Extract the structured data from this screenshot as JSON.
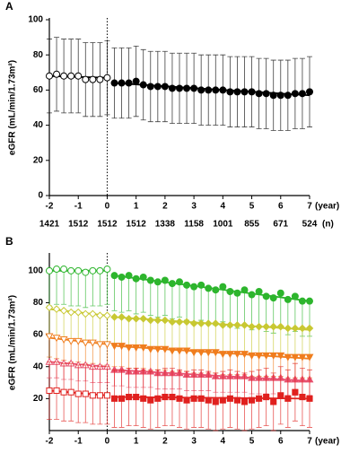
{
  "chart_data": [
    {
      "type": "scatter",
      "title": "A",
      "y_label": "eGFR (mL/min/1.73m²)",
      "x_unit": "(year)",
      "n_unit": "(n)",
      "xlim": [
        -2,
        7
      ],
      "xticks": [
        -2,
        -1,
        0,
        1,
        2,
        3,
        4,
        5,
        6,
        7
      ],
      "ylim": [
        0,
        100
      ],
      "yticks": [
        0,
        20,
        40,
        60,
        80,
        100
      ],
      "n_values": [
        1421,
        1512,
        1512,
        1512,
        1338,
        1158,
        1001,
        855,
        671,
        524
      ],
      "divider_x": 0,
      "series": [
        {
          "color": "#000000",
          "marker": "circle",
          "filled": false,
          "error_direction": "both",
          "error": 21,
          "trend": [
            68,
            67
          ],
          "x": [
            -2,
            -1.75,
            -1.5,
            -1.25,
            -1,
            -0.75,
            -0.5,
            -0.25,
            0
          ],
          "values": [
            68,
            69,
            68,
            68,
            68,
            66,
            66,
            66,
            67
          ]
        },
        {
          "color": "#000000",
          "marker": "circle",
          "filled": true,
          "error_direction": "both",
          "error": 20,
          "trend": [
            64,
            57
          ],
          "x": [
            0.25,
            0.5,
            0.75,
            1,
            1.25,
            1.5,
            1.75,
            2,
            2.25,
            2.5,
            2.75,
            3,
            3.25,
            3.5,
            3.75,
            4,
            4.25,
            4.5,
            4.75,
            5,
            5.25,
            5.5,
            5.75,
            6,
            6.25,
            6.5,
            6.75,
            7
          ],
          "values": [
            64,
            64,
            64,
            65,
            63,
            62,
            62,
            62,
            61,
            61,
            61,
            61,
            60,
            60,
            60,
            60,
            59,
            59,
            59,
            59,
            58,
            58,
            57,
            57,
            57,
            58,
            58,
            59
          ]
        }
      ]
    },
    {
      "type": "scatter",
      "title": "B",
      "y_label": "eGFR (mL/min/1.73m²)",
      "x_unit": "(year)",
      "xlim": [
        -2,
        7
      ],
      "xticks": [
        -2,
        -1,
        0,
        1,
        2,
        3,
        4,
        5,
        6,
        7
      ],
      "ylim": [
        0,
        110
      ],
      "yticks": [
        20,
        40,
        60,
        80,
        100
      ],
      "divider_x": 0,
      "series": [
        {
          "color": "#2db52d",
          "marker": "circle",
          "filled": false,
          "error_direction": "down",
          "error": 22,
          "trend": [
            100,
            100
          ],
          "x": [
            -2,
            -1.75,
            -1.5,
            -1.25,
            -1,
            -0.75,
            -0.5,
            -0.25,
            0
          ],
          "values": [
            100,
            101,
            101,
            100,
            100,
            99,
            100,
            100,
            101
          ]
        },
        {
          "color": "#2db52d",
          "marker": "circle",
          "filled": true,
          "error_direction": "down",
          "error": 22,
          "trend": [
            97,
            81
          ],
          "x": [
            0.25,
            0.5,
            0.75,
            1,
            1.25,
            1.5,
            1.75,
            2,
            2.25,
            2.5,
            2.75,
            3,
            3.25,
            3.5,
            3.75,
            4,
            4.25,
            4.5,
            4.75,
            5,
            5.25,
            5.5,
            5.75,
            6,
            6.25,
            6.5,
            6.75,
            7
          ],
          "values": [
            97,
            96,
            97,
            95,
            96,
            94,
            93,
            94,
            92,
            93,
            91,
            90,
            91,
            89,
            88,
            90,
            87,
            86,
            88,
            85,
            87,
            84,
            83,
            86,
            82,
            84,
            81,
            81
          ]
        },
        {
          "color": "#c8c832",
          "marker": "diamond",
          "filled": false,
          "error_direction": "down",
          "error": 18,
          "trend": [
            76,
            72
          ],
          "x": [
            -2,
            -1.75,
            -1.5,
            -1.25,
            -1,
            -0.75,
            -0.5,
            -0.25,
            0
          ],
          "values": [
            77,
            76,
            75,
            74,
            74,
            73,
            73,
            72,
            72
          ]
        },
        {
          "color": "#c8c832",
          "marker": "diamond",
          "filled": true,
          "error_direction": "down",
          "error": 18,
          "trend": [
            71,
            63
          ],
          "x": [
            0.25,
            0.5,
            0.75,
            1,
            1.25,
            1.5,
            1.75,
            2,
            2.25,
            2.5,
            2.75,
            3,
            3.25,
            3.5,
            3.75,
            4,
            4.25,
            4.5,
            4.75,
            5,
            5.25,
            5.5,
            5.75,
            6,
            6.25,
            6.5,
            6.75,
            7
          ],
          "values": [
            71,
            71,
            70,
            70,
            70,
            69,
            69,
            69,
            68,
            68,
            68,
            67,
            67,
            67,
            67,
            66,
            66,
            66,
            66,
            65,
            65,
            65,
            65,
            65,
            64,
            64,
            64,
            64
          ]
        },
        {
          "color": "#f07d1e",
          "marker": "triangle-down",
          "filled": false,
          "error_direction": "down",
          "error": 13,
          "trend": [
            58,
            54
          ],
          "x": [
            -2,
            -1.75,
            -1.5,
            -1.25,
            -1,
            -0.75,
            -0.5,
            -0.25,
            0
          ],
          "values": [
            59,
            58,
            57,
            56,
            56,
            55,
            55,
            54,
            54
          ]
        },
        {
          "color": "#f07d1e",
          "marker": "triangle-down",
          "filled": true,
          "error_direction": "down",
          "error": 13,
          "trend": [
            53,
            45
          ],
          "x": [
            0.25,
            0.5,
            0.75,
            1,
            1.25,
            1.5,
            1.75,
            2,
            2.25,
            2.5,
            2.75,
            3,
            3.25,
            3.5,
            3.75,
            4,
            4.25,
            4.5,
            4.75,
            5,
            5.25,
            5.5,
            5.75,
            6,
            6.25,
            6.5,
            6.75,
            7
          ],
          "values": [
            53,
            53,
            52,
            52,
            52,
            51,
            51,
            51,
            50,
            50,
            50,
            49,
            49,
            49,
            49,
            48,
            48,
            48,
            48,
            47,
            47,
            47,
            47,
            47,
            46,
            46,
            46,
            46
          ]
        },
        {
          "color": "#e8506e",
          "marker": "triangle-up",
          "filled": false,
          "error_direction": "down",
          "error": 10,
          "trend": [
            43,
            40
          ],
          "x": [
            -2,
            -1.75,
            -1.5,
            -1.25,
            -1,
            -0.75,
            -0.5,
            -0.25,
            0
          ],
          "values": [
            43,
            43,
            42,
            42,
            41,
            41,
            40,
            40,
            40
          ]
        },
        {
          "color": "#e8506e",
          "marker": "triangle-up",
          "filled": true,
          "error_direction": "down",
          "error": 10,
          "trend": [
            38,
            31
          ],
          "x": [
            0.25,
            0.5,
            0.75,
            1,
            1.25,
            1.5,
            1.75,
            2,
            2.25,
            2.5,
            2.75,
            3,
            3.25,
            3.5,
            3.75,
            4,
            4.25,
            4.5,
            4.75,
            5,
            5.25,
            5.5,
            5.75,
            6,
            6.25,
            6.5,
            6.75,
            7
          ],
          "values": [
            38,
            38,
            37,
            37,
            37,
            37,
            36,
            36,
            36,
            36,
            35,
            35,
            35,
            35,
            34,
            34,
            34,
            34,
            34,
            33,
            33,
            33,
            33,
            33,
            32,
            32,
            32,
            32
          ]
        },
        {
          "color": "#e0201e",
          "marker": "square",
          "filled": false,
          "error_direction": "both",
          "error": 18,
          "trend": [
            25,
            22
          ],
          "x": [
            -2,
            -1.75,
            -1.5,
            -1.25,
            -1,
            -0.75,
            -0.5,
            -0.25,
            0
          ],
          "values": [
            25,
            25,
            24,
            24,
            23,
            23,
            22,
            22,
            22
          ]
        },
        {
          "color": "#e0201e",
          "marker": "square",
          "filled": true,
          "error_direction": "both",
          "error": 18,
          "trend": [
            21,
            20
          ],
          "x": [
            0.25,
            0.5,
            0.75,
            1,
            1.25,
            1.5,
            1.75,
            2,
            2.25,
            2.5,
            2.75,
            3,
            3.25,
            3.5,
            3.75,
            4,
            4.25,
            4.5,
            4.75,
            5,
            5.25,
            5.5,
            5.75,
            6,
            6.25,
            6.5,
            6.75,
            7
          ],
          "values": [
            20,
            20,
            21,
            21,
            20,
            19,
            20,
            21,
            21,
            20,
            19,
            20,
            20,
            19,
            18,
            19,
            20,
            19,
            18,
            19,
            20,
            21,
            18,
            22,
            20,
            24,
            21,
            20
          ]
        }
      ]
    }
  ]
}
